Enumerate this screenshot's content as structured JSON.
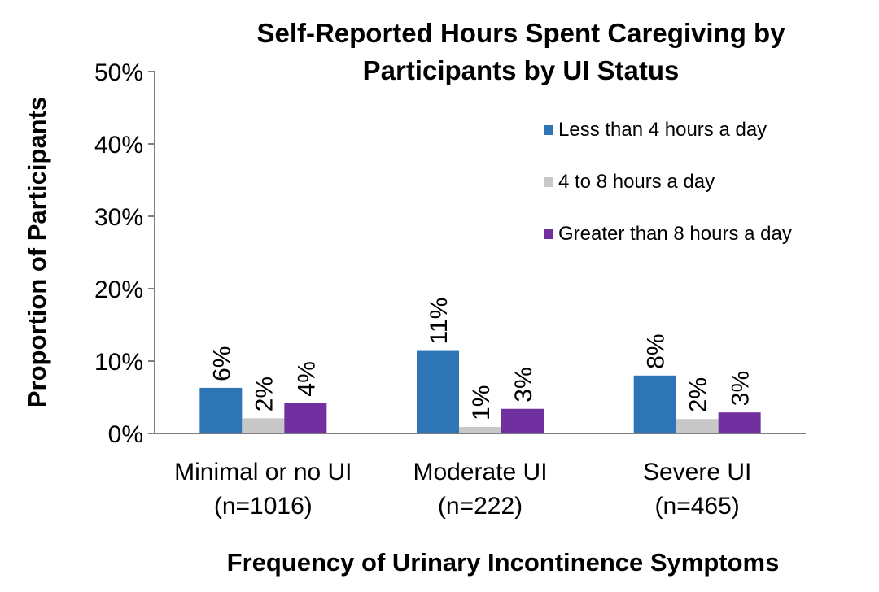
{
  "chart_data": {
    "type": "bar",
    "title": [
      "Self-Reported Hours Spent Caregiving by",
      "Participants by UI Status"
    ],
    "xlabel": "Frequency of Urinary Incontinence Symptoms",
    "ylabel": "Proportion of Participants",
    "ylim": [
      0,
      50
    ],
    "y_ticks": [
      "0%",
      "10%",
      "20%",
      "30%",
      "40%",
      "50%"
    ],
    "categories": [
      [
        "Minimal or no UI",
        "(n=1016)"
      ],
      [
        "Moderate UI",
        "(n=222)"
      ],
      [
        "Severe UI",
        "(n=465)"
      ]
    ],
    "series": [
      {
        "name": "Less than 4 hours a day",
        "values": [
          6.3,
          11.4,
          8.0
        ],
        "labels": [
          "6%",
          "11%",
          "8%"
        ],
        "color": "#2e75b6"
      },
      {
        "name": "4 to 8 hours a day",
        "values": [
          2.1,
          0.9,
          2.0
        ],
        "labels": [
          "2%",
          "1%",
          "2%"
        ],
        "color": "#c8c8c8"
      },
      {
        "name": "Greater than 8 hours a day",
        "values": [
          4.2,
          3.4,
          2.9
        ],
        "labels": [
          "4%",
          "3%",
          "3%"
        ],
        "color": "#7030a0"
      }
    ],
    "grid": false,
    "legend_position": "top-right",
    "data_labels_rotated": true
  }
}
